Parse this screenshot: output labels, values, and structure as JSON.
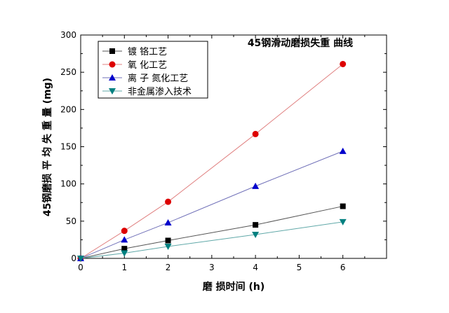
{
  "chart_data": {
    "type": "line",
    "title": "45钢滑动磨损失重 曲线",
    "xlabel": "磨 损时间 (h)",
    "ylabel": "45钢磨损 平 均 失 重 量 (mg)",
    "xlim": [
      0,
      7
    ],
    "ylim": [
      0,
      300
    ],
    "xticks": [
      0,
      1,
      2,
      3,
      4,
      5,
      6
    ],
    "yticks": [
      0,
      50,
      100,
      150,
      200,
      250,
      300
    ],
    "grid": false,
    "legend_position": "top-left",
    "x": [
      0,
      1,
      2,
      4,
      6
    ],
    "series": [
      {
        "name": "镀  铬工艺",
        "marker": "square",
        "color": "#000000",
        "line_color": "#555555",
        "values": [
          0,
          13,
          24,
          45,
          70
        ]
      },
      {
        "name": "氧 化工艺",
        "marker": "circle",
        "color": "#dd0000",
        "line_color": "#e08080",
        "values": [
          0,
          37,
          76,
          167,
          261
        ]
      },
      {
        "name": "离 子 氮化工艺",
        "marker": "triangle-up",
        "color": "#0000cc",
        "line_color": "#7070b8",
        "values": [
          0,
          25,
          48,
          97,
          144
        ]
      },
      {
        "name": "非金属渗入技术",
        "marker": "triangle-down",
        "color": "#008080",
        "line_color": "#60a8a8",
        "values": [
          0,
          7,
          16,
          32,
          49
        ]
      }
    ]
  }
}
